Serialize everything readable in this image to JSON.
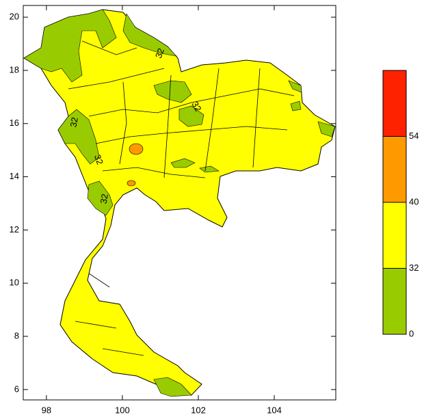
{
  "map": {
    "xlim": [
      97.39,
      105.62
    ],
    "ylim": [
      5.61,
      20.44
    ],
    "xticks": [
      98,
      100,
      102,
      104
    ],
    "yticks": [
      6,
      8,
      10,
      12,
      14,
      16,
      18,
      20
    ],
    "contour_labels": [
      "32",
      "32",
      "32",
      "32",
      "32"
    ]
  },
  "colorbar": {
    "levels": [
      0,
      32,
      40,
      54
    ],
    "colors": [
      "#99cc00",
      "#ffff00",
      "#ff9900",
      "#ff2200"
    ]
  }
}
